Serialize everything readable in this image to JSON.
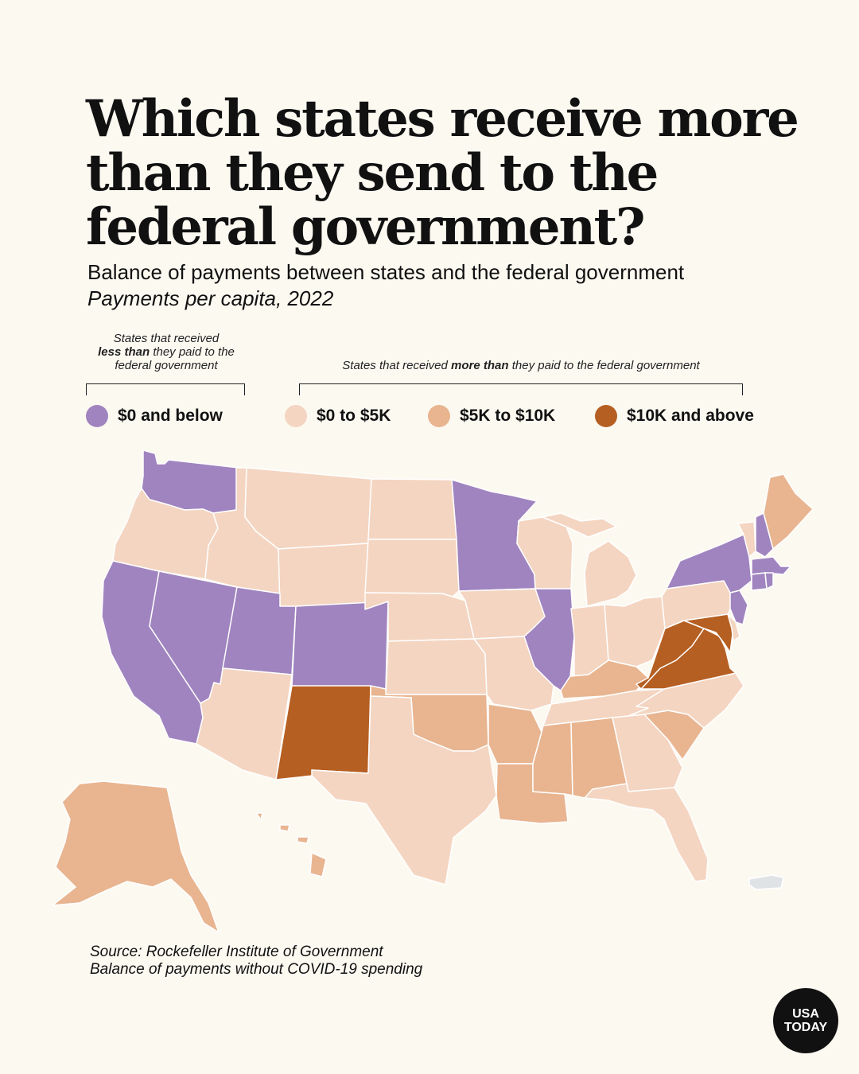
{
  "title": "Which states receive more than they send to the federal government?",
  "subtitle": "Balance of payments between states and the federal government",
  "subsubtitle": "Payments per capita, 2022",
  "groups": {
    "less": {
      "pre": "States that received",
      "bold": "less than",
      "post": "they paid to the federal government"
    },
    "more": {
      "pre": "States that received",
      "bold": "more than",
      "post": "they paid to the federal government"
    }
  },
  "legend": [
    {
      "key": "neg",
      "label": "$0 and below",
      "color": "#a084bf"
    },
    {
      "key": "low",
      "label": "$0 to $5K",
      "color": "#f4d5c1"
    },
    {
      "key": "mid",
      "label": "$5K to $10K",
      "color": "#e8b590"
    },
    {
      "key": "high",
      "label": "$10K and above",
      "color": "#b65f22"
    }
  ],
  "territory_color": "#dfe3e6",
  "map_data": {
    "WA": "neg",
    "OR": "low",
    "CA": "neg",
    "NV": "neg",
    "ID": "low",
    "MT": "low",
    "WY": "low",
    "UT": "neg",
    "CO": "neg",
    "AZ": "low",
    "NM": "high",
    "ND": "low",
    "SD": "low",
    "NE": "low",
    "KS": "low",
    "OK": "mid",
    "TX": "low",
    "MN": "neg",
    "IA": "low",
    "MO": "low",
    "AR": "mid",
    "LA": "mid",
    "WI": "low",
    "IL": "neg",
    "MI": "low",
    "IN": "low",
    "OH": "low",
    "KY": "mid",
    "TN": "low",
    "MS": "mid",
    "AL": "mid",
    "GA": "low",
    "FL": "low",
    "SC": "mid",
    "NC": "low",
    "VA": "high",
    "WV": "high",
    "MD": "high",
    "DE": "low",
    "PA": "low",
    "NJ": "neg",
    "NY": "neg",
    "CT": "neg",
    "RI": "neg",
    "MA": "neg",
    "VT": "low",
    "NH": "neg",
    "ME": "mid",
    "AK": "mid",
    "HI": "mid"
  },
  "source_lines": [
    "Source: Rockefeller Institute of Government",
    "Balance of payments without COVID-19 spending"
  ],
  "logo": {
    "line1": "USA",
    "line2": "TODAY"
  }
}
